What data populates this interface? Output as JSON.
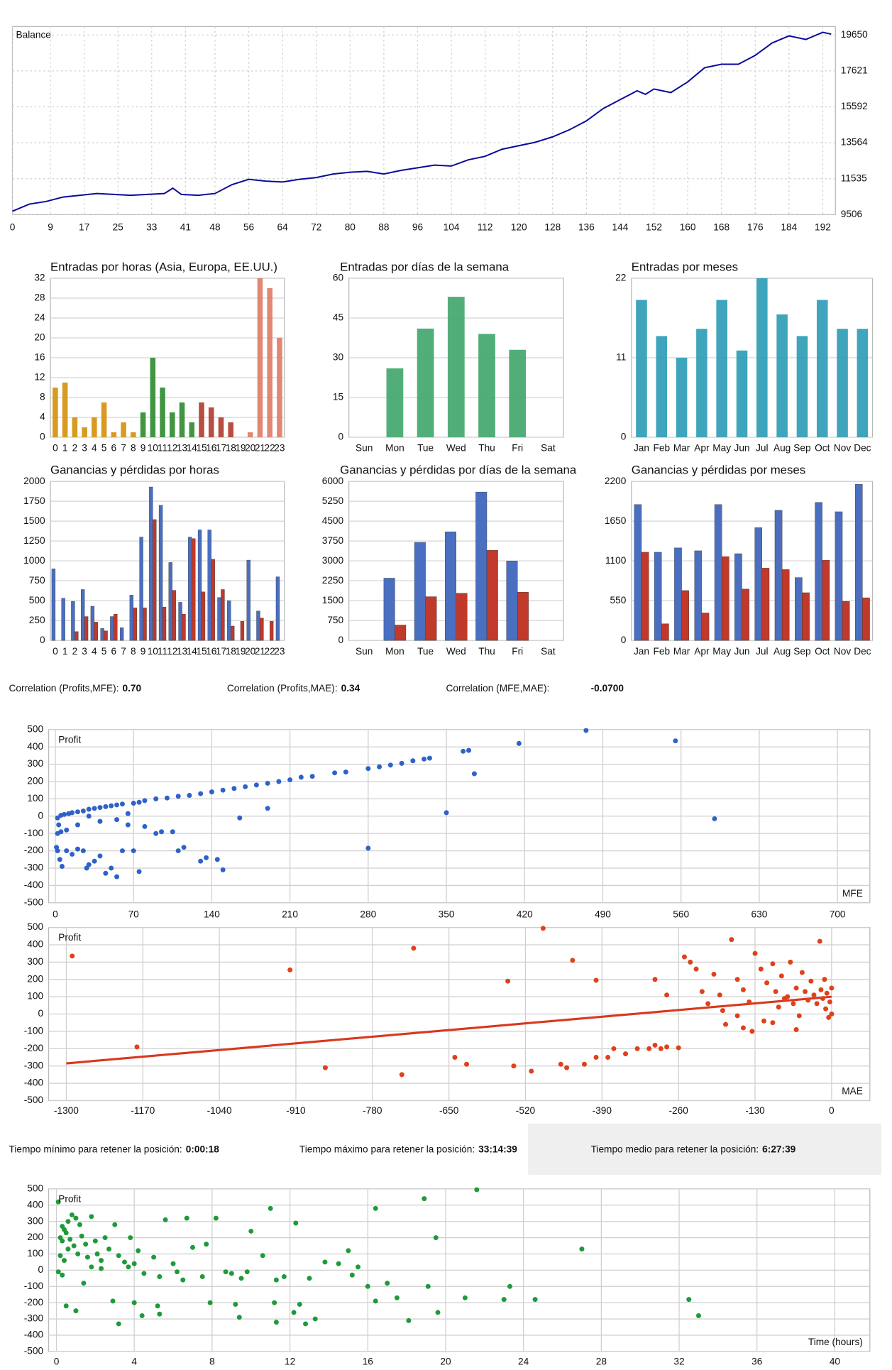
{
  "chart_data": [
    {
      "type": "line",
      "title": "Balance",
      "color": "#0a0a9a",
      "y_axis_side": "right",
      "grid": true,
      "x": [
        0,
        4,
        8,
        12,
        16,
        20,
        24,
        28,
        32,
        36,
        38,
        40,
        44,
        48,
        52,
        56,
        60,
        64,
        68,
        72,
        76,
        80,
        84,
        88,
        92,
        96,
        100,
        104,
        108,
        112,
        116,
        120,
        124,
        128,
        132,
        136,
        140,
        144,
        148,
        150,
        152,
        156,
        160,
        164,
        168,
        172,
        176,
        180,
        184,
        188,
        192,
        194
      ],
      "values": [
        9700,
        10100,
        10250,
        10500,
        10600,
        10700,
        10650,
        10600,
        10650,
        10700,
        11000,
        10650,
        10600,
        10700,
        11200,
        11500,
        11400,
        11350,
        11500,
        11600,
        11800,
        11900,
        11950,
        11800,
        12000,
        12150,
        12300,
        12250,
        12600,
        12800,
        13200,
        13400,
        13600,
        13900,
        14300,
        14800,
        15500,
        16000,
        16500,
        16300,
        16600,
        16400,
        17000,
        17800,
        18000,
        18000,
        18500,
        19200,
        19600,
        19400,
        19800,
        19700
      ],
      "xlim": [
        0,
        195
      ],
      "ylim": [
        9506,
        20130
      ],
      "xticks": [
        0,
        9,
        17,
        25,
        33,
        41,
        48,
        56,
        64,
        72,
        80,
        88,
        96,
        104,
        112,
        120,
        128,
        136,
        144,
        152,
        160,
        168,
        176,
        184,
        192
      ],
      "yticks": [
        9506,
        11535,
        13564,
        15592,
        17621,
        19650
      ]
    },
    {
      "type": "bar",
      "title": "Entradas por horas (Asia, Europa, EE.UU.)",
      "grid": true,
      "categories": [
        "0",
        "1",
        "2",
        "3",
        "4",
        "5",
        "6",
        "7",
        "8",
        "9",
        "10",
        "11",
        "12",
        "13",
        "14",
        "15",
        "16",
        "17",
        "18",
        "19",
        "20",
        "21",
        "22",
        "23"
      ],
      "values": [
        10,
        11,
        4,
        2,
        4,
        7,
        1,
        3,
        1,
        5,
        16,
        10,
        5,
        7,
        3,
        7,
        6,
        4,
        3,
        0,
        1,
        32,
        30,
        20
      ],
      "colors": [
        "#d4900a",
        "#d4900a",
        "#d4900a",
        "#d4900a",
        "#d4900a",
        "#d4900a",
        "#d4900a",
        "#d4900a",
        "#d4900a",
        "#2e8b2e",
        "#2e8b2e",
        "#2e8b2e",
        "#2e8b2e",
        "#2e8b2e",
        "#2e8b2e",
        "#b03a2e",
        "#b03a2e",
        "#b03a2e",
        "#b03a2e",
        "#b03a2e",
        "#e07a66",
        "#e07a66",
        "#e07a66",
        "#e07a66"
      ],
      "ylim": [
        0,
        32
      ],
      "yticks": [
        0,
        4,
        8,
        12,
        16,
        20,
        24,
        28,
        32
      ]
    },
    {
      "type": "bar",
      "title": "Entradas por días de la semana",
      "grid": true,
      "color": "#3fa56a",
      "categories": [
        "Sun",
        "Mon",
        "Tue",
        "Wed",
        "Thu",
        "Fri",
        "Sat"
      ],
      "values": [
        0,
        26,
        41,
        53,
        39,
        33,
        0
      ],
      "ylim": [
        0,
        60
      ],
      "yticks": [
        0,
        15,
        30,
        45,
        60
      ]
    },
    {
      "type": "bar",
      "title": "Entradas por meses",
      "grid": true,
      "color": "#2a9bb5",
      "categories": [
        "Jan",
        "Feb",
        "Mar",
        "Apr",
        "May",
        "Jun",
        "Jul",
        "Aug",
        "Sep",
        "Oct",
        "Nov",
        "Dec"
      ],
      "values": [
        19,
        14,
        11,
        15,
        19,
        12,
        22,
        17,
        14,
        19,
        15,
        15
      ],
      "ylim": [
        0,
        22
      ],
      "yticks": [
        0,
        11,
        22
      ]
    },
    {
      "type": "bar",
      "title": "Ganancias y pérdidas por horas",
      "grid": true,
      "categories": [
        "0",
        "1",
        "2",
        "3",
        "4",
        "5",
        "6",
        "7",
        "8",
        "9",
        "10",
        "11",
        "12",
        "13",
        "14",
        "15",
        "16",
        "17",
        "18",
        "19",
        "20",
        "21",
        "22",
        "23"
      ],
      "series": [
        {
          "color": "#4a6fc0",
          "values": [
            900,
            530,
            490,
            640,
            430,
            150,
            300,
            160,
            570,
            1300,
            1930,
            1700,
            980,
            480,
            1300,
            1390,
            1390,
            540,
            500,
            0,
            1010,
            370,
            0,
            800
          ]
        },
        {
          "color": "#c0392b",
          "values": [
            0,
            0,
            110,
            300,
            230,
            120,
            330,
            0,
            410,
            410,
            1520,
            420,
            630,
            330,
            1280,
            610,
            1020,
            640,
            180,
            240,
            0,
            280,
            240,
            0
          ]
        }
      ],
      "ylim": [
        0,
        2000
      ],
      "yticks": [
        0,
        250,
        500,
        750,
        1000,
        1250,
        1500,
        1750,
        2000
      ]
    },
    {
      "type": "bar",
      "title": "Ganancias y pérdidas por días de la semana",
      "grid": true,
      "categories": [
        "Sun",
        "Mon",
        "Tue",
        "Wed",
        "Thu",
        "Fri",
        "Sat"
      ],
      "series": [
        {
          "color": "#4a6fc0",
          "values": [
            0,
            2350,
            3700,
            4100,
            5600,
            3000,
            0
          ]
        },
        {
          "color": "#c0392b",
          "values": [
            0,
            580,
            1650,
            1780,
            3400,
            1820,
            0
          ]
        }
      ],
      "ylim": [
        0,
        6000
      ],
      "yticks": [
        0,
        750,
        1500,
        2250,
        3000,
        3750,
        4500,
        5250,
        6000
      ]
    },
    {
      "type": "bar",
      "title": "Ganancias y pérdidas por meses",
      "grid": true,
      "categories": [
        "Jan",
        "Feb",
        "Mar",
        "Apr",
        "May",
        "Jun",
        "Jul",
        "Aug",
        "Sep",
        "Oct",
        "Nov",
        "Dec"
      ],
      "series": [
        {
          "color": "#4a6fc0",
          "values": [
            1880,
            1220,
            1280,
            1240,
            1880,
            1200,
            1560,
            1800,
            870,
            1910,
            1780,
            2160
          ]
        },
        {
          "color": "#c0392b",
          "values": [
            1220,
            230,
            690,
            380,
            1160,
            710,
            1000,
            980,
            660,
            1110,
            540,
            590
          ]
        }
      ],
      "ylim": [
        0,
        2200
      ],
      "yticks": [
        0,
        550,
        1100,
        1650,
        2200
      ]
    },
    {
      "type": "scatter",
      "ylabel": "Profit",
      "xlabel": "MFE",
      "color": "#2e62c9",
      "grid": true,
      "x": [
        5,
        8,
        12,
        15,
        20,
        25,
        30,
        35,
        40,
        45,
        50,
        55,
        60,
        70,
        75,
        80,
        90,
        100,
        110,
        120,
        130,
        140,
        150,
        160,
        170,
        180,
        190,
        200,
        210,
        220,
        230,
        250,
        260,
        280,
        290,
        300,
        310,
        320,
        330,
        335,
        365,
        370,
        375,
        350,
        415,
        475,
        555,
        590,
        280,
        190,
        165,
        2,
        3,
        2,
        5,
        1,
        2,
        4,
        6,
        10,
        15,
        20,
        25,
        28,
        30,
        35,
        40,
        45,
        50,
        55,
        60,
        65,
        70,
        75,
        80,
        90,
        95,
        105,
        110,
        115,
        130,
        135,
        145,
        150,
        10,
        20,
        30,
        40,
        55,
        65
      ],
      "values": [
        5,
        10,
        15,
        20,
        25,
        30,
        40,
        45,
        50,
        55,
        60,
        65,
        70,
        75,
        80,
        90,
        100,
        105,
        115,
        120,
        130,
        140,
        150,
        160,
        170,
        180,
        190,
        200,
        210,
        225,
        230,
        250,
        255,
        275,
        285,
        295,
        305,
        320,
        330,
        335,
        375,
        380,
        245,
        20,
        420,
        495,
        435,
        -15,
        -185,
        45,
        -10,
        -10,
        -50,
        -100,
        -90,
        -180,
        -200,
        -250,
        -290,
        -200,
        -220,
        -190,
        -200,
        -300,
        -280,
        -260,
        -230,
        -330,
        -300,
        -350,
        -200,
        -50,
        -200,
        -320,
        -60,
        -100,
        -90,
        -90,
        -200,
        -180,
        -260,
        -240,
        -250,
        -310,
        -80,
        -50,
        0,
        -30,
        -20,
        15
      ],
      "xlim": [
        -6,
        729
      ],
      "ylim": [
        -500,
        500
      ],
      "xticks": [
        0,
        70,
        140,
        210,
        280,
        350,
        420,
        490,
        560,
        630,
        700
      ],
      "yticks": [
        -500,
        -400,
        -300,
        -200,
        -100,
        0,
        100,
        200,
        300,
        400,
        500
      ]
    },
    {
      "type": "scatter",
      "ylabel": "Profit",
      "xlabel": "MAE",
      "color": "#e0401a",
      "grid": true,
      "x": [
        -1290,
        -1180,
        -920,
        -860,
        -730,
        -710,
        -640,
        -620,
        -550,
        -540,
        -510,
        -490,
        -460,
        -450,
        -440,
        -420,
        -400,
        -400,
        -380,
        -370,
        -350,
        -330,
        -310,
        -300,
        -290,
        -280,
        -300,
        -280,
        -260,
        -250,
        -240,
        -230,
        -220,
        -210,
        -200,
        -190,
        -185,
        -180,
        -170,
        -160,
        -150,
        -140,
        -135,
        -130,
        -120,
        -110,
        -100,
        -95,
        -90,
        -85,
        -80,
        -75,
        -70,
        -65,
        -60,
        -55,
        -50,
        -45,
        -40,
        -35,
        -30,
        -25,
        -20,
        -18,
        -15,
        -12,
        -10,
        -8,
        -5,
        -3,
        0,
        0,
        -160,
        -115,
        -60,
        -100,
        -150
      ],
      "values": [
        335,
        -190,
        255,
        -310,
        -350,
        380,
        -250,
        -290,
        190,
        -300,
        -330,
        495,
        -290,
        -310,
        310,
        -290,
        -250,
        195,
        -250,
        -200,
        -230,
        -200,
        -200,
        -180,
        -200,
        -190,
        200,
        110,
        -195,
        330,
        300,
        260,
        130,
        60,
        230,
        110,
        20,
        -60,
        430,
        200,
        140,
        70,
        -100,
        350,
        260,
        180,
        -50,
        130,
        40,
        220,
        90,
        100,
        300,
        60,
        150,
        -10,
        240,
        130,
        80,
        190,
        110,
        60,
        420,
        140,
        90,
        200,
        30,
        120,
        -20,
        70,
        150,
        0,
        -10,
        -40,
        -90,
        290,
        -80
      ],
      "trendline": {
        "x": [
          -1300,
          0
        ],
        "values": [
          -285,
          100
        ],
        "color": "#d9381e"
      },
      "xlim": [
        -1330,
        65
      ],
      "ylim": [
        -500,
        500
      ],
      "xticks": [
        -1300,
        -1170,
        -1040,
        -910,
        -780,
        -650,
        -520,
        -390,
        -260,
        -130,
        0
      ],
      "yticks": [
        -500,
        -400,
        -300,
        -200,
        -100,
        0,
        100,
        200,
        300,
        400,
        500
      ]
    },
    {
      "type": "scatter",
      "ylabel": "Profit",
      "xlabel": "Time (hours)",
      "color": "#1f9a3a",
      "grid": true,
      "x": [
        0.1,
        0.2,
        0.3,
        0.3,
        0.4,
        0.5,
        0.6,
        0.7,
        0.8,
        0.9,
        1,
        1.1,
        1.2,
        1.3,
        1.5,
        1.6,
        1.8,
        2,
        2.1,
        2.3,
        2.5,
        2.7,
        3,
        3.2,
        3.5,
        3.8,
        4,
        4.2,
        4.5,
        5,
        5.3,
        5.6,
        6,
        6.5,
        6.7,
        7,
        7.5,
        7.7,
        8.2,
        8.7,
        9,
        9.5,
        10,
        10.6,
        11,
        11.3,
        11.7,
        12.3,
        13,
        13.8,
        14.5,
        15,
        15.5,
        16,
        16.4,
        17,
        17.5,
        18.1,
        18.9,
        19.1,
        19.5,
        19.6,
        21,
        21.6,
        23,
        23.3,
        24.6,
        27,
        32.5,
        33,
        0.1,
        0.3,
        0.4,
        0.5,
        1,
        1.4,
        2.9,
        3.2,
        4,
        4.4,
        5.2,
        5.3,
        7.9,
        9.2,
        9.4,
        11.2,
        11.3,
        12.2,
        12.5,
        12.8,
        13.3,
        16.4,
        0.2,
        0.6,
        1.8,
        2.3,
        3.7,
        6.2,
        9.8,
        15.2
      ],
      "values": [
        420,
        200,
        270,
        180,
        250,
        230,
        300,
        190,
        340,
        150,
        320,
        100,
        280,
        210,
        160,
        80,
        330,
        180,
        100,
        60,
        200,
        130,
        280,
        90,
        50,
        200,
        40,
        120,
        -20,
        80,
        -40,
        310,
        40,
        -60,
        320,
        140,
        -40,
        160,
        320,
        -10,
        -20,
        -50,
        240,
        90,
        380,
        -60,
        -40,
        290,
        -50,
        50,
        40,
        120,
        20,
        -100,
        380,
        -80,
        -170,
        -310,
        440,
        -100,
        200,
        -260,
        -170,
        495,
        -180,
        -100,
        -180,
        130,
        -180,
        -280,
        -10,
        -30,
        60,
        -220,
        -250,
        -80,
        -190,
        -330,
        -200,
        -280,
        -220,
        -270,
        -200,
        -210,
        -290,
        -200,
        -320,
        -260,
        -210,
        -330,
        -300,
        -190,
        90,
        130,
        20,
        10,
        20,
        -10,
        -10,
        -30
      ],
      "xlim": [
        -0.4,
        41.8
      ],
      "ylim": [
        -500,
        500
      ],
      "xticks": [
        0,
        4,
        8,
        12,
        16,
        20,
        24,
        28,
        32,
        36,
        40
      ],
      "yticks": [
        -500,
        -400,
        -300,
        -200,
        -100,
        0,
        100,
        200,
        300,
        400,
        500
      ]
    }
  ],
  "correlations": [
    {
      "label": "Correlation (Profits,MFE):",
      "value": "0.70"
    },
    {
      "label": "Correlation (Profits,MAE):",
      "value": "0.34"
    },
    {
      "label": "Correlation (MFE,MAE):",
      "value": "-0.0700"
    }
  ],
  "hold_times": [
    {
      "label": "Tiempo mínimo para retener la posición:",
      "value": "0:00:18"
    },
    {
      "label": "Tiempo máximo para retener la posición:",
      "value": "33:14:39"
    },
    {
      "label": "Tiempo medio para retener la posición:",
      "value": "6:27:39"
    }
  ]
}
